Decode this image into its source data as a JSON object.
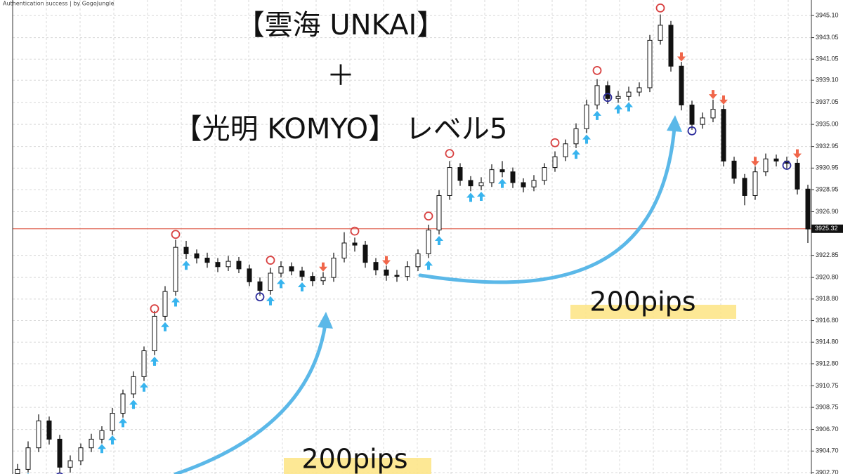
{
  "chart_data": {
    "type": "candlestick",
    "annotations": {
      "auth": "Authentication success | by GogoJungle",
      "line1": "【雲海 UNKAI】",
      "plus": "＋",
      "line2": "【光明 KOMYO】 レベル5",
      "pips_a": "200pips",
      "pips_b": "200pips"
    },
    "open": [
      3902.6,
      3903.0,
      3905.0,
      3907.5,
      3905.8,
      3903.2,
      3903.8,
      3905.0,
      3905.8,
      3906.6,
      3908.2,
      3910.0,
      3911.6,
      3914.0,
      3917.2,
      3919.5,
      3923.6,
      3923.0,
      3922.6,
      3922.2,
      3921.8,
      3922.3,
      3921.6,
      3920.4,
      3919.6,
      3921.2,
      3921.8,
      3921.4,
      3920.9,
      3920.5,
      3920.8,
      3922.6,
      3924.0,
      3923.8,
      3922.2,
      3921.5,
      3921.0,
      3920.9,
      3921.8,
      3923.0,
      3925.2,
      3928.4,
      3931.0,
      3929.8,
      3929.3,
      3929.6,
      3930.8,
      3930.6,
      3929.6,
      3929.2,
      3929.8,
      3931.0,
      3932.0,
      3933.2,
      3934.6,
      3936.8,
      3938.6,
      3937.4,
      3937.6,
      3938.0,
      3938.4,
      3942.8,
      3944.2,
      3940.4,
      3936.8,
      3935.0,
      3935.6,
      3936.4,
      3931.6,
      3930.0,
      3928.4,
      3930.6,
      3931.8,
      3931.6,
      3931.4,
      3929.0
    ],
    "high": [
      3903.5,
      3905.6,
      3908.1,
      3907.9,
      3906.2,
      3904.3,
      3905.4,
      3906.3,
      3907.0,
      3908.7,
      3910.4,
      3912.1,
      3914.4,
      3917.7,
      3920.0,
      3924.3,
      3924.2,
      3923.4,
      3923.1,
      3922.6,
      3922.8,
      3922.7,
      3922.0,
      3920.8,
      3921.7,
      3922.3,
      3922.2,
      3921.8,
      3921.3,
      3921.3,
      3923.1,
      3925.0,
      3924.5,
      3924.2,
      3922.6,
      3921.9,
      3921.5,
      3922.3,
      3923.4,
      3925.7,
      3928.9,
      3931.6,
      3931.4,
      3930.2,
      3930.1,
      3931.3,
      3931.6,
      3931.0,
      3930.0,
      3930.3,
      3931.4,
      3932.5,
      3933.6,
      3935.1,
      3937.3,
      3939.2,
      3939.0,
      3938.1,
      3938.5,
      3938.9,
      3943.3,
      3945.2,
      3944.6,
      3940.8,
      3937.2,
      3936.1,
      3937.3,
      3936.8,
      3932.0,
      3930.4,
      3931.1,
      3932.3,
      3932.2,
      3932.0,
      3931.8,
      3929.4
    ],
    "low": [
      3902.2,
      3902.7,
      3904.6,
      3905.3,
      3902.7,
      3902.7,
      3903.4,
      3904.6,
      3905.4,
      3906.2,
      3907.8,
      3909.6,
      3911.2,
      3913.6,
      3916.8,
      3919.1,
      3922.5,
      3922.1,
      3921.7,
      3921.3,
      3921.4,
      3921.2,
      3920.0,
      3919.1,
      3919.2,
      3920.8,
      3921.0,
      3920.5,
      3920.0,
      3920.1,
      3920.4,
      3922.2,
      3923.2,
      3921.7,
      3921.0,
      3920.5,
      3920.4,
      3920.5,
      3921.4,
      3922.6,
      3924.8,
      3928.0,
      3929.3,
      3928.8,
      3928.9,
      3929.2,
      3930.1,
      3929.1,
      3928.7,
      3928.8,
      3929.4,
      3930.6,
      3931.6,
      3932.8,
      3934.2,
      3936.4,
      3936.9,
      3937.0,
      3937.2,
      3937.6,
      3938.0,
      3942.4,
      3939.9,
      3936.3,
      3934.5,
      3934.6,
      3935.2,
      3931.1,
      3929.5,
      3927.5,
      3928.0,
      3930.2,
      3931.1,
      3930.9,
      3928.5,
      3924.0
    ],
    "close": [
      3903.0,
      3905.0,
      3907.5,
      3905.8,
      3903.2,
      3903.8,
      3905.0,
      3905.8,
      3906.6,
      3908.2,
      3910.0,
      3911.6,
      3914.0,
      3917.2,
      3919.5,
      3923.6,
      3923.0,
      3922.6,
      3922.2,
      3921.8,
      3922.3,
      3921.6,
      3920.4,
      3919.6,
      3921.2,
      3921.8,
      3921.4,
      3920.9,
      3920.5,
      3920.8,
      3922.6,
      3924.0,
      3923.8,
      3922.2,
      3921.5,
      3921.0,
      3920.9,
      3921.8,
      3923.0,
      3925.2,
      3928.4,
      3931.0,
      3929.8,
      3929.3,
      3929.6,
      3930.8,
      3930.6,
      3929.6,
      3929.2,
      3929.8,
      3931.0,
      3932.0,
      3933.2,
      3934.6,
      3936.8,
      3938.6,
      3937.4,
      3937.6,
      3938.0,
      3938.4,
      3942.8,
      3944.2,
      3940.4,
      3936.8,
      3935.0,
      3935.6,
      3936.4,
      3931.6,
      3930.0,
      3928.4,
      3930.6,
      3931.8,
      3931.6,
      3931.4,
      3929.0,
      3925.3
    ],
    "candle_color": "#111111",
    "ylim": [
      3902.57,
      3946.54
    ],
    "yticks": [
      {
        "value": 3902.7,
        "label": "3902.70"
      },
      {
        "value": 3904.7,
        "label": "3904.70"
      },
      {
        "value": 3906.7,
        "label": "3906.70"
      },
      {
        "value": 3908.75,
        "label": "3908.75"
      },
      {
        "value": 3910.75,
        "label": "3910.75"
      },
      {
        "value": 3912.8,
        "label": "3912.80"
      },
      {
        "value": 3914.8,
        "label": "3914.80"
      },
      {
        "value": 3916.8,
        "label": "3916.80"
      },
      {
        "value": 3918.8,
        "label": "3918.80"
      },
      {
        "value": 3920.8,
        "label": "3920.80"
      },
      {
        "value": 3922.85,
        "label": "3922.85"
      },
      {
        "value": 3926.9,
        "label": "3926.90"
      },
      {
        "value": 3928.95,
        "label": "3928.95"
      },
      {
        "value": 3930.95,
        "label": "3930.95"
      },
      {
        "value": 3932.95,
        "label": "3932.95"
      },
      {
        "value": 3935,
        "label": "3935.00"
      },
      {
        "value": 3937.05,
        "label": "3937.05"
      },
      {
        "value": 3939.1,
        "label": "3939.10"
      },
      {
        "value": 3941.05,
        "label": "3941.05"
      },
      {
        "value": 3943.05,
        "label": "3943.05"
      },
      {
        "value": 3945.1,
        "label": "3945.10"
      }
    ],
    "grid": true,
    "price_line": {
      "value": 3925.32,
      "label": "3925.32",
      "color": "#e06a5a"
    },
    "marker_colors": {
      "up": "#38b4ee",
      "down": "#f0664a",
      "top": "#d84040",
      "bottom": "#2c2c9c"
    },
    "markers": [
      {
        "kind": "bottom",
        "index": 4,
        "price": 3902.3
      },
      {
        "kind": "bottom",
        "index": 23,
        "price": 3919.0
      },
      {
        "kind": "bottom",
        "index": 56,
        "price": 3937.5
      },
      {
        "kind": "bottom",
        "index": 64,
        "price": 3934.4
      },
      {
        "kind": "bottom",
        "index": 73,
        "price": 3931.2
      },
      {
        "kind": "top",
        "index": 13,
        "price": 3917.9
      },
      {
        "kind": "top",
        "index": 15,
        "price": 3924.8
      },
      {
        "kind": "top",
        "index": 24,
        "price": 3922.4
      },
      {
        "kind": "top",
        "index": 32,
        "price": 3925.1
      },
      {
        "kind": "top",
        "index": 39,
        "price": 3926.5
      },
      {
        "kind": "top",
        "index": 41,
        "price": 3932.3
      },
      {
        "kind": "top",
        "index": 51,
        "price": 3933.3
      },
      {
        "kind": "top",
        "index": 55,
        "price": 3940.0
      },
      {
        "kind": "top",
        "index": 61,
        "price": 3945.8
      },
      {
        "kind": "up",
        "index": 1,
        "price": 3902.2
      },
      {
        "kind": "up",
        "index": 8,
        "price": 3904.9
      },
      {
        "kind": "up",
        "index": 9,
        "price": 3905.7
      },
      {
        "kind": "up",
        "index": 10,
        "price": 3907.3
      },
      {
        "kind": "up",
        "index": 11,
        "price": 3909.0
      },
      {
        "kind": "up",
        "index": 12,
        "price": 3910.6
      },
      {
        "kind": "up",
        "index": 13,
        "price": 3913.0
      },
      {
        "kind": "up",
        "index": 14,
        "price": 3916.2
      },
      {
        "kind": "up",
        "index": 15,
        "price": 3918.5
      },
      {
        "kind": "up",
        "index": 16,
        "price": 3921.9
      },
      {
        "kind": "up",
        "index": 24,
        "price": 3918.6
      },
      {
        "kind": "up",
        "index": 25,
        "price": 3920.2
      },
      {
        "kind": "up",
        "index": 27,
        "price": 3919.9
      },
      {
        "kind": "up",
        "index": 39,
        "price": 3921.9
      },
      {
        "kind": "up",
        "index": 40,
        "price": 3924.2
      },
      {
        "kind": "up",
        "index": 43,
        "price": 3928.2
      },
      {
        "kind": "up",
        "index": 44,
        "price": 3928.3
      },
      {
        "kind": "up",
        "index": 46,
        "price": 3929.5
      },
      {
        "kind": "up",
        "index": 53,
        "price": 3932.2
      },
      {
        "kind": "up",
        "index": 54,
        "price": 3933.6
      },
      {
        "kind": "up",
        "index": 55,
        "price": 3935.8
      },
      {
        "kind": "up",
        "index": 57,
        "price": 3936.4
      },
      {
        "kind": "up",
        "index": 58,
        "price": 3936.6
      },
      {
        "kind": "down",
        "index": 29,
        "price": 3921.8
      },
      {
        "kind": "down",
        "index": 35,
        "price": 3922.4
      },
      {
        "kind": "down",
        "index": 63,
        "price": 3941.3
      },
      {
        "kind": "down",
        "index": 66,
        "price": 3937.8
      },
      {
        "kind": "down",
        "index": 67,
        "price": 3937.3
      },
      {
        "kind": "down",
        "index": 70,
        "price": 3931.6
      },
      {
        "kind": "down",
        "index": 74,
        "price": 3932.3
      }
    ]
  }
}
